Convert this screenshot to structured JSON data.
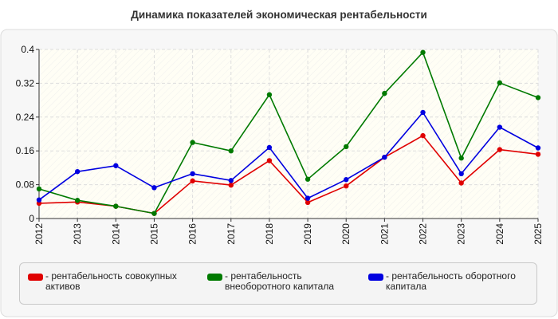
{
  "chart_data": {
    "type": "line",
    "title": "Динамика показателей экономическая рентабельности",
    "xlabel": "",
    "ylabel": "",
    "x": [
      "2012",
      "2013",
      "2014",
      "2015",
      "2016",
      "2017",
      "2018",
      "2019",
      "2020",
      "2021",
      "2022",
      "2023",
      "2024",
      "2025"
    ],
    "ylim": [
      0,
      0.4
    ],
    "yticks": [
      "0",
      "0.08",
      "0.16",
      "0.24",
      "0.32",
      "0.4"
    ],
    "grid": true,
    "legend_position": "bottom",
    "series": [
      {
        "name": "- рентабельность совокупных активов",
        "color": "#e00000",
        "values": [
          0.036,
          0.039,
          0.029,
          0.012,
          0.089,
          0.079,
          0.137,
          0.038,
          0.077,
          0.145,
          0.196,
          0.084,
          0.163,
          0.152
        ]
      },
      {
        "name": "- рентабельность внеоборотного капитала",
        "color": "#007a00",
        "values": [
          0.07,
          0.043,
          0.029,
          0.012,
          0.18,
          0.16,
          0.293,
          0.093,
          0.17,
          0.296,
          0.393,
          0.143,
          0.321,
          0.286
        ]
      },
      {
        "name": "- рентабельность оборотного капитала",
        "color": "#0000e0",
        "values": [
          0.044,
          0.111,
          0.125,
          0.073,
          0.106,
          0.09,
          0.168,
          0.048,
          0.092,
          0.145,
          0.251,
          0.106,
          0.216,
          0.167
        ]
      }
    ]
  }
}
